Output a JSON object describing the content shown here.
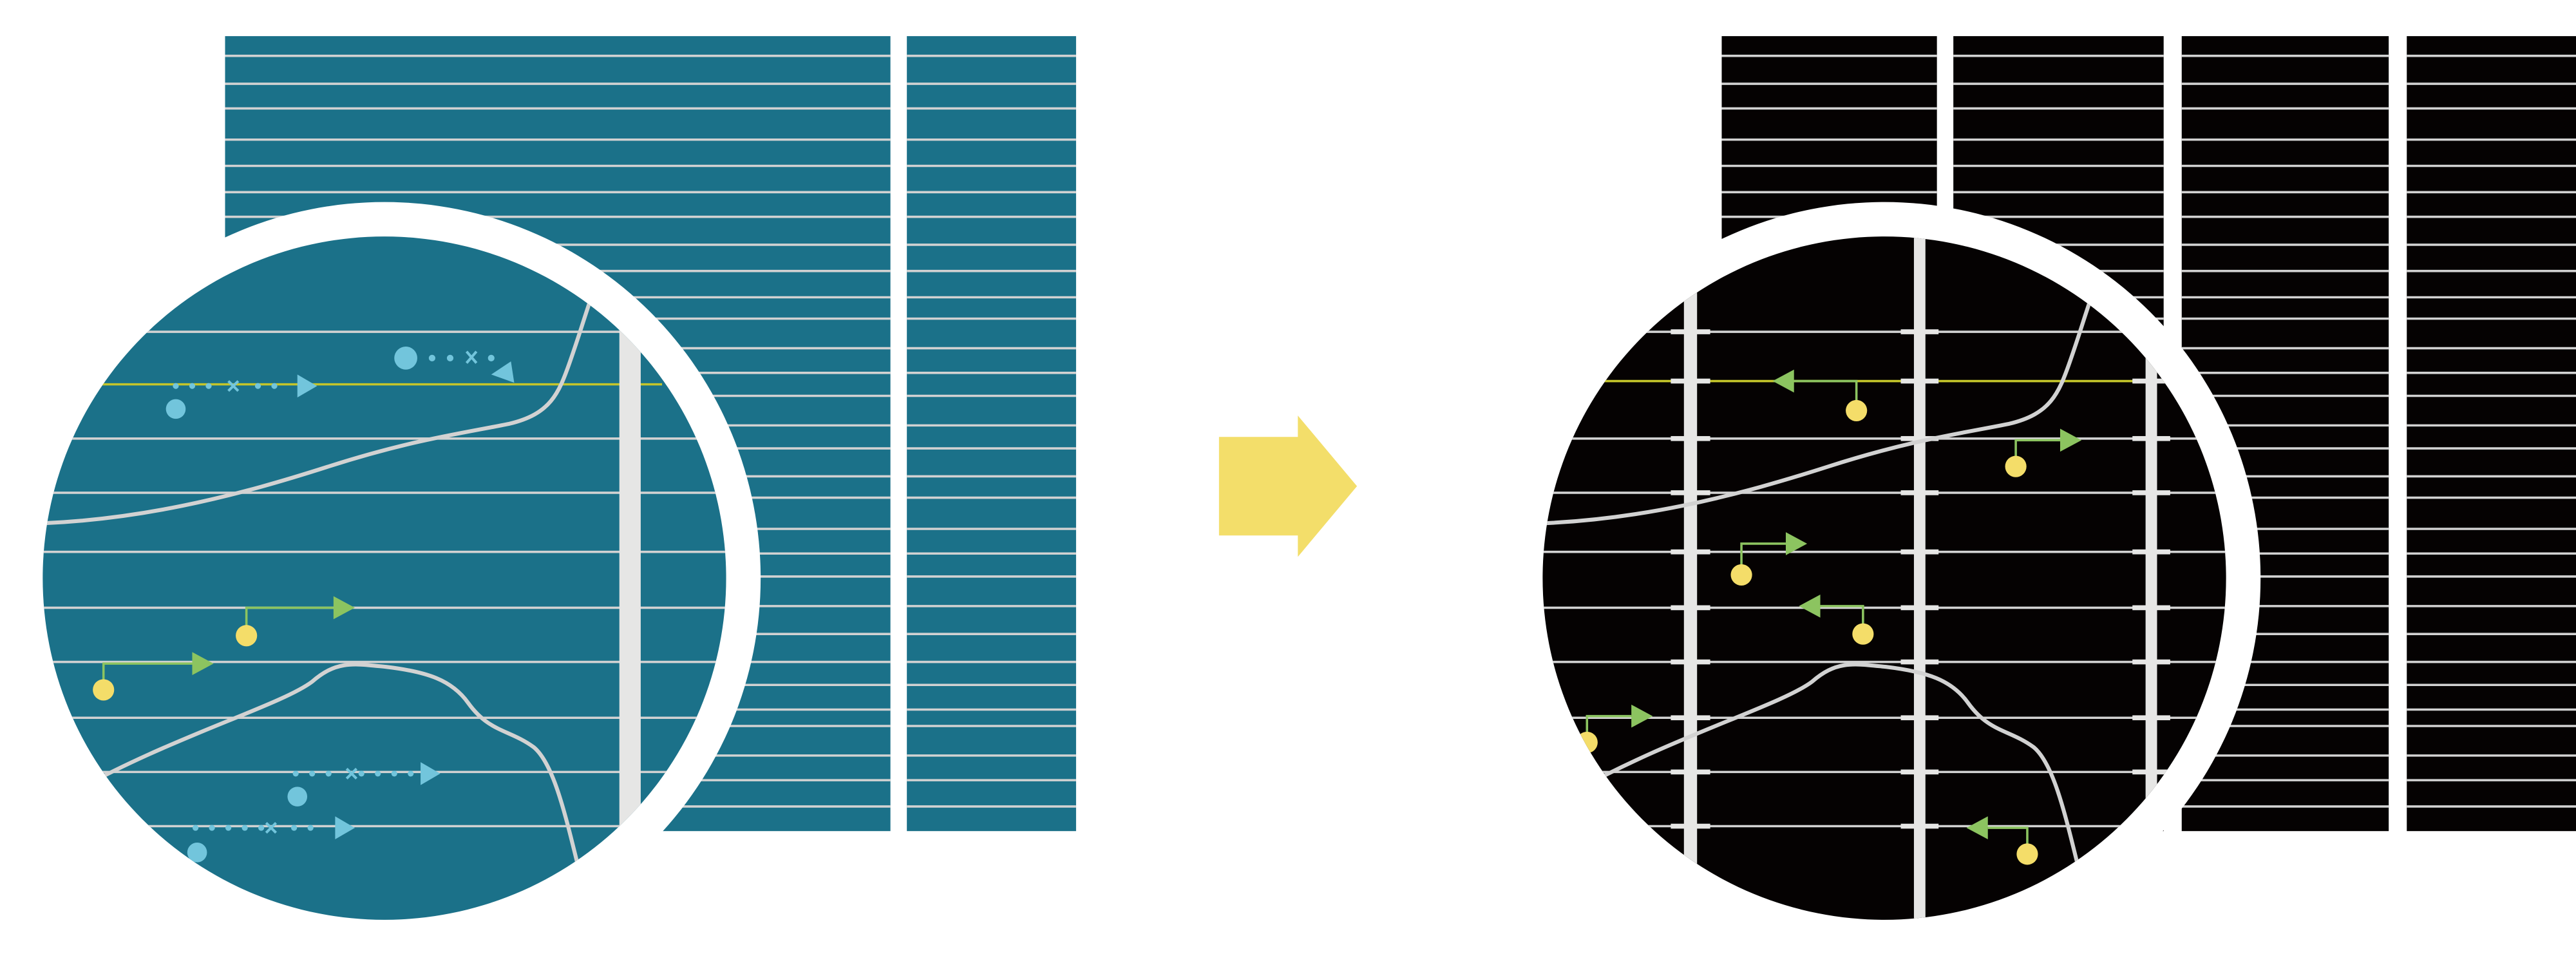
{
  "diagram": {
    "colors": {
      "before_panel": "#1b7189",
      "after_panel": "#050202",
      "grid_line": "#d2d2d2",
      "highlight_line": "#c4c52a",
      "blue_marker": "#72c5dc",
      "green_arrow": "#8cc460",
      "yellow_dot": "#f4dd69",
      "transition_arrow": "#f3de6a",
      "lens_ring": "#ffffff",
      "column_bar": "#e6e6e5"
    },
    "before_columns": 2,
    "after_columns": 4,
    "icons": {
      "transition": "arrow-right-icon",
      "lens": "magnifier-circle-icon"
    }
  }
}
